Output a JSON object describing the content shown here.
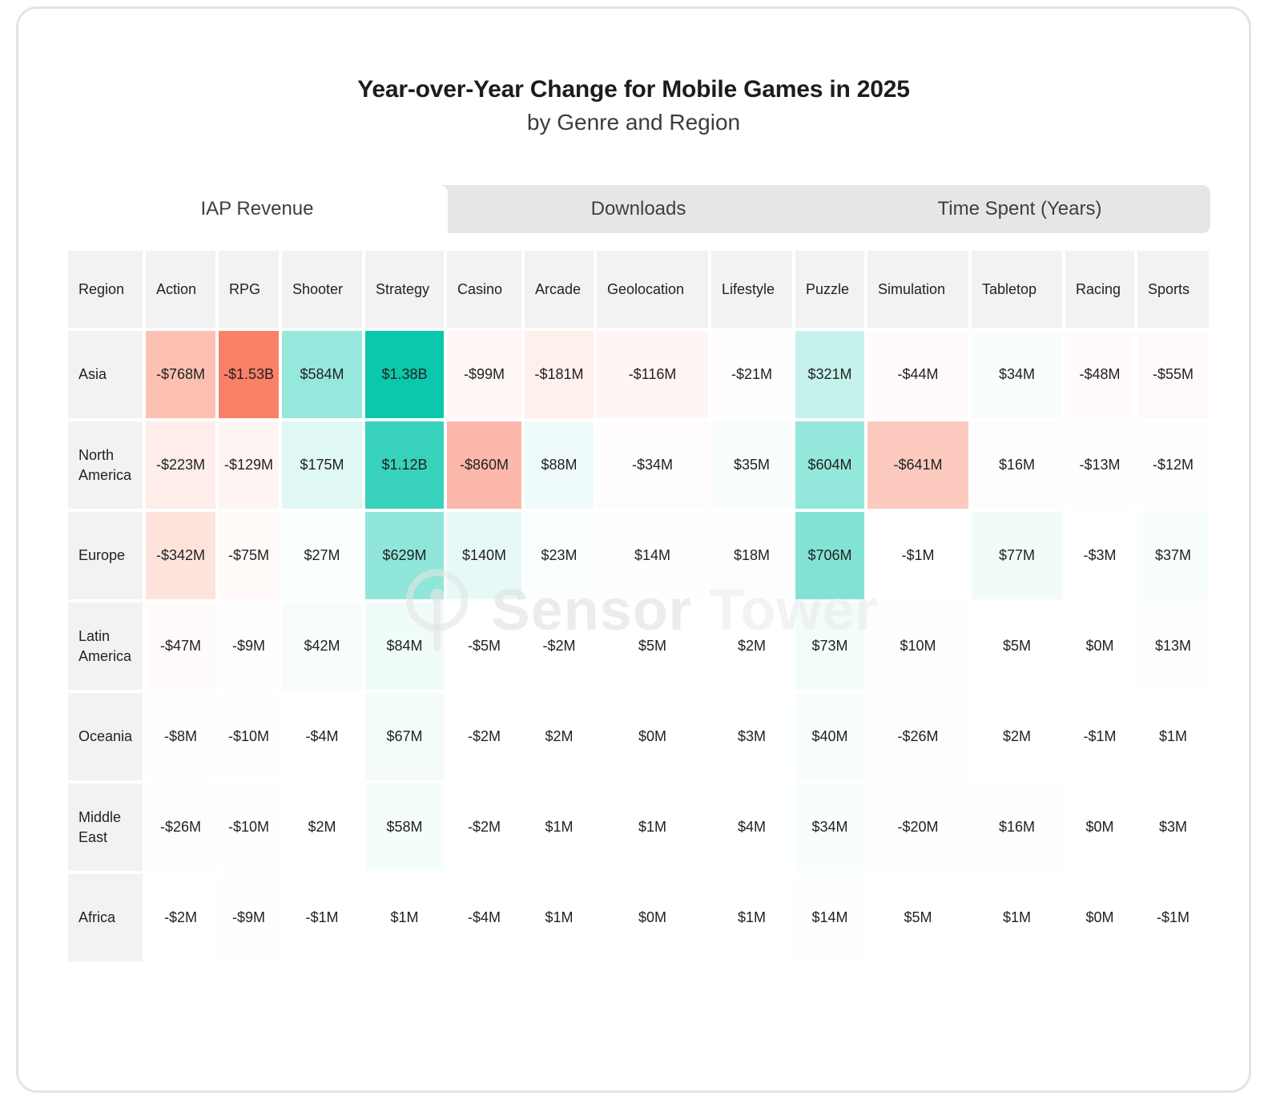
{
  "header": {
    "title": "Year-over-Year Change for Mobile Games in 2025",
    "subtitle": "by Genre and Region"
  },
  "tabs": [
    {
      "label": "IAP Revenue",
      "active": true
    },
    {
      "label": "Downloads",
      "active": false
    },
    {
      "label": "Time Spent (Years)",
      "active": false
    }
  ],
  "watermark": {
    "word1": "Sensor",
    "word2": "Tower",
    "logo": "sensor-tower-circle-antenna"
  },
  "colors": {
    "positive_end": "#0AC8AC",
    "negative_end": "#F98167",
    "positive_rgb": [
      10,
      200,
      172
    ],
    "negative_rgb": [
      249,
      129,
      103
    ],
    "header_cell_bg": "#F2F2F2",
    "tabbar_bg": "#E6E6E6",
    "card_border": "#E4E4E4"
  },
  "chart_data": {
    "type": "heatmap",
    "title": "Year-over-Year Change for Mobile Games in 2025",
    "subtitle": "by Genre and Region",
    "metric": "IAP Revenue (YoY change, USD)",
    "region_header": "Region",
    "columns": [
      "Action",
      "RPG",
      "Shooter",
      "Strategy",
      "Casino",
      "Arcade",
      "Geolocation",
      "Lifestyle",
      "Puzzle",
      "Simulation",
      "Tabletop",
      "Racing",
      "Sports"
    ],
    "scale": {
      "positive_max": 1380,
      "negative_max": 1530,
      "units": "millions USD"
    },
    "rows": [
      {
        "region": "Asia",
        "values": [
          -768,
          -1530,
          584,
          1380,
          -99,
          -181,
          -116,
          -21,
          321,
          -44,
          34,
          -48,
          -55
        ],
        "labels": [
          "-$768M",
          "-$1.53B",
          "$584M",
          "$1.38B",
          "-$99M",
          "-$181M",
          "-$116M",
          "-$21M",
          "$321M",
          "-$44M",
          "$34M",
          "-$48M",
          "-$55M"
        ]
      },
      {
        "region": "North America",
        "values": [
          -223,
          -129,
          175,
          1120,
          -860,
          88,
          -34,
          35,
          604,
          -641,
          16,
          -13,
          -12
        ],
        "labels": [
          "-$223M",
          "-$129M",
          "$175M",
          "$1.12B",
          "-$860M",
          "$88M",
          "-$34M",
          "$35M",
          "$604M",
          "-$641M",
          "$16M",
          "-$13M",
          "-$12M"
        ]
      },
      {
        "region": "Europe",
        "values": [
          -342,
          -75,
          27,
          629,
          140,
          23,
          14,
          18,
          706,
          -1,
          77,
          -3,
          37
        ],
        "labels": [
          "-$342M",
          "-$75M",
          "$27M",
          "$629M",
          "$140M",
          "$23M",
          "$14M",
          "$18M",
          "$706M",
          "-$1M",
          "$77M",
          "-$3M",
          "$37M"
        ]
      },
      {
        "region": "Latin America",
        "values": [
          -47,
          -9,
          42,
          84,
          -5,
          -2,
          5,
          2,
          73,
          10,
          5,
          0,
          13
        ],
        "labels": [
          "-$47M",
          "-$9M",
          "$42M",
          "$84M",
          "-$5M",
          "-$2M",
          "$5M",
          "$2M",
          "$73M",
          "$10M",
          "$5M",
          "$0M",
          "$13M"
        ]
      },
      {
        "region": "Oceania",
        "values": [
          -8,
          -10,
          -4,
          67,
          -2,
          2,
          0,
          3,
          40,
          -26,
          2,
          -1,
          1
        ],
        "labels": [
          "-$8M",
          "-$10M",
          "-$4M",
          "$67M",
          "-$2M",
          "$2M",
          "$0M",
          "$3M",
          "$40M",
          "-$26M",
          "$2M",
          "-$1M",
          "$1M"
        ]
      },
      {
        "region": "Middle East",
        "values": [
          -26,
          -10,
          2,
          58,
          -2,
          1,
          1,
          4,
          34,
          -20,
          16,
          0,
          3
        ],
        "labels": [
          "-$26M",
          "-$10M",
          "$2M",
          "$58M",
          "-$2M",
          "$1M",
          "$1M",
          "$4M",
          "$34M",
          "-$20M",
          "$16M",
          "$0M",
          "$3M"
        ]
      },
      {
        "region": "Africa",
        "values": [
          -2,
          -9,
          -1,
          1,
          -4,
          1,
          0,
          1,
          14,
          5,
          1,
          0,
          -1
        ],
        "labels": [
          "-$2M",
          "-$9M",
          "-$1M",
          "$1M",
          "-$4M",
          "$1M",
          "$0M",
          "$1M",
          "$14M",
          "$5M",
          "$1M",
          "$0M",
          "-$1M"
        ]
      }
    ]
  }
}
